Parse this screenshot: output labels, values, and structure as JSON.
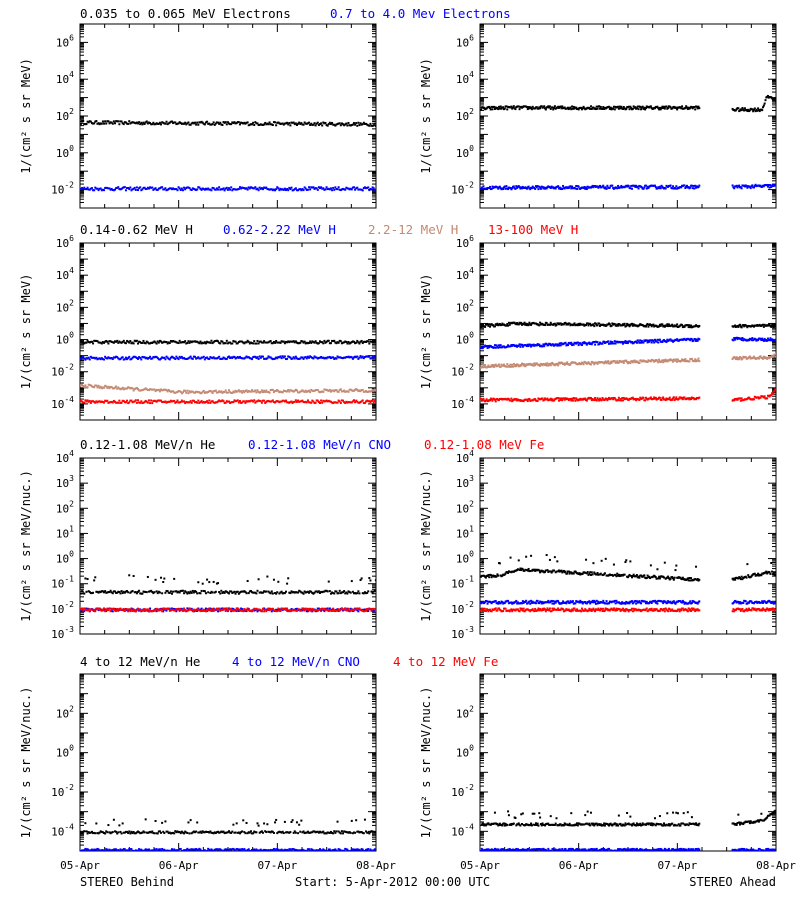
{
  "colors": {
    "black": "#000000",
    "blue": "#0000ff",
    "tan": "#c48a73",
    "red": "#ff0000"
  },
  "footer": {
    "left": "STEREO Behind",
    "center": "Start:  5-Apr-2012 00:00 UTC",
    "right": "STEREO Ahead",
    "x_ticks": [
      "05-Apr",
      "06-Apr",
      "07-Apr",
      "08-Apr"
    ]
  },
  "chart_data": [
    {
      "row": 1,
      "type": "scatter",
      "legend": [
        {
          "label": "0.035 to 0.065 MeV Electrons",
          "color": "#000000"
        },
        {
          "label": "0.7 to 4.0 Mev Electrons",
          "color": "#0000ff"
        }
      ],
      "ylabel": "1/(cm² s sr MeV)",
      "y_scale": "log",
      "ylim_log10": [
        -3,
        7
      ],
      "y_ticks": [
        {
          "exp": "-2",
          "label": "10⁻²"
        },
        {
          "exp": "0",
          "label": "10⁰"
        },
        {
          "exp": "2",
          "label": "10²"
        },
        {
          "exp": "4",
          "label": "10⁴"
        },
        {
          "exp": "6",
          "label": "10⁶"
        }
      ],
      "xlim_days": [
        0,
        3
      ],
      "panels": [
        {
          "title": "STEREO Behind",
          "series": [
            {
              "legend": 0,
              "segments": [
                {
                  "x": [
                    0,
                    3
                  ],
                  "y_log10": [
                    1.7,
                    1.6
                  ]
                }
              ]
            },
            {
              "legend": 1,
              "segments": [
                {
                  "x": [
                    0,
                    3
                  ],
                  "y_log10": [
                    -1.9,
                    -1.9
                  ]
                }
              ]
            }
          ]
        },
        {
          "title": "STEREO Ahead",
          "series": [
            {
              "legend": 0,
              "segments": [
                {
                  "x": [
                    0,
                    0.3,
                    2.95
                  ],
                  "y_log10": [
                    2.45,
                    2.5,
                    2.5
                  ]
                },
                {
                  "x": [
                    3.4,
                    3.8,
                    3.85,
                    3.9,
                    4.0
                  ],
                  "y_log10": [
                    2.4,
                    2.4,
                    3.0,
                    3.1,
                    2.9
                  ]
                }
              ]
            },
            {
              "legend": 1,
              "segments": [
                {
                  "x": [
                    0,
                    2.95
                  ],
                  "y_log10": [
                    -1.85,
                    -1.8
                  ]
                },
                {
                  "x": [
                    3.4,
                    4.0
                  ],
                  "y_log10": [
                    -1.8,
                    -1.75
                  ]
                }
              ]
            }
          ]
        }
      ]
    },
    {
      "row": 2,
      "type": "scatter",
      "legend": [
        {
          "label": "0.14-0.62 MeV H",
          "color": "#000000"
        },
        {
          "label": "0.62-2.22 MeV H",
          "color": "#0000ff"
        },
        {
          "label": "2.2-12 MeV H",
          "color": "#c48a73"
        },
        {
          "label": "13-100 MeV H",
          "color": "#ff0000"
        }
      ],
      "ylabel": "1/(cm² s sr MeV)",
      "y_scale": "log",
      "ylim_log10": [
        -5,
        6
      ],
      "y_ticks": [
        {
          "exp": "-4",
          "label": "10⁻⁴"
        },
        {
          "exp": "-2",
          "label": "10⁻²"
        },
        {
          "exp": "0",
          "label": "10⁰"
        },
        {
          "exp": "2",
          "label": "10²"
        },
        {
          "exp": "4",
          "label": "10⁴"
        },
        {
          "exp": "6",
          "label": "10⁶"
        }
      ],
      "xlim_days": [
        0,
        3
      ],
      "panels": [
        {
          "title": "STEREO Behind",
          "series": [
            {
              "legend": 0,
              "segments": [
                {
                  "x": [
                    0,
                    3
                  ],
                  "y_log10": [
                    -0.1,
                    -0.1
                  ]
                }
              ]
            },
            {
              "legend": 1,
              "segments": [
                {
                  "x": [
                    0,
                    3
                  ],
                  "y_log10": [
                    -1.1,
                    -1.05
                  ]
                }
              ]
            },
            {
              "legend": 2,
              "segments": [
                {
                  "x": [
                    0,
                    1,
                    3
                  ],
                  "y_log10": [
                    -2.8,
                    -3.2,
                    -3.1
                  ]
                }
              ]
            },
            {
              "legend": 3,
              "segments": [
                {
                  "x": [
                    0,
                    3
                  ],
                  "y_log10": [
                    -3.8,
                    -3.8
                  ]
                }
              ]
            }
          ]
        },
        {
          "title": "STEREO Ahead",
          "series": [
            {
              "legend": 0,
              "segments": [
                {
                  "x": [
                    0,
                    0.5,
                    2.95
                  ],
                  "y_log10": [
                    0.9,
                    1.05,
                    0.9
                  ]
                },
                {
                  "x": [
                    3.4,
                    4.0
                  ],
                  "y_log10": [
                    0.9,
                    0.9
                  ]
                }
              ]
            },
            {
              "legend": 1,
              "segments": [
                {
                  "x": [
                    0,
                    2.95
                  ],
                  "y_log10": [
                    -0.4,
                    0.05
                  ]
                },
                {
                  "x": [
                    3.4,
                    4.0
                  ],
                  "y_log10": [
                    0.1,
                    0.05
                  ]
                }
              ]
            },
            {
              "legend": 2,
              "segments": [
                {
                  "x": [
                    0,
                    2.95
                  ],
                  "y_log10": [
                    -1.6,
                    -1.2
                  ]
                },
                {
                  "x": [
                    3.4,
                    3.9,
                    4.0
                  ],
                  "y_log10": [
                    -1.1,
                    -1.05,
                    -0.9
                  ]
                }
              ]
            },
            {
              "legend": 3,
              "segments": [
                {
                  "x": [
                    0,
                    2.95
                  ],
                  "y_log10": [
                    -3.7,
                    -3.6
                  ]
                },
                {
                  "x": [
                    3.4,
                    3.9,
                    4.0
                  ],
                  "y_log10": [
                    -3.7,
                    -3.5,
                    -3.0
                  ]
                }
              ]
            }
          ]
        }
      ]
    },
    {
      "row": 3,
      "type": "scatter",
      "legend": [
        {
          "label": "0.12-1.08 MeV/n He",
          "color": "#000000"
        },
        {
          "label": "0.12-1.08 MeV/n CNO",
          "color": "#0000ff"
        },
        {
          "label": "0.12-1.08 MeV Fe",
          "color": "#ff0000"
        }
      ],
      "ylabel": "1/(cm² s sr MeV/nuc.)",
      "y_scale": "log",
      "ylim_log10": [
        -3,
        4
      ],
      "y_ticks": [
        {
          "exp": "-3",
          "label": "10⁻³"
        },
        {
          "exp": "-2",
          "label": "10⁻²"
        },
        {
          "exp": "-1",
          "label": "10⁻¹"
        },
        {
          "exp": "0",
          "label": "10⁰"
        },
        {
          "exp": "1",
          "label": "10¹"
        },
        {
          "exp": "2",
          "label": "10²"
        },
        {
          "exp": "3",
          "label": "10³"
        },
        {
          "exp": "4",
          "label": "10⁴"
        }
      ],
      "xlim_days": [
        0,
        3
      ],
      "panels": [
        {
          "title": "STEREO Behind",
          "series": [
            {
              "legend": 0,
              "segments": [
                {
                  "x": [
                    0,
                    3
                  ],
                  "y_log10": [
                    -1.3,
                    -1.3
                  ]
                }
              ]
            },
            {
              "legend": 1,
              "segments": [
                {
                  "x": [
                    0,
                    3
                  ],
                  "y_log10": [
                    -2.0,
                    -2.0
                  ]
                }
              ]
            },
            {
              "legend": 2,
              "segments": [
                {
                  "x": [
                    0,
                    3
                  ],
                  "y_log10": [
                    -2.0,
                    -2.0
                  ]
                }
              ]
            }
          ]
        },
        {
          "title": "STEREO Ahead",
          "series": [
            {
              "legend": 0,
              "segments": [
                {
                  "x": [
                    0,
                    0.3,
                    0.5,
                    2.95
                  ],
                  "y_log10": [
                    -0.7,
                    -0.6,
                    -0.4,
                    -0.8
                  ]
                },
                {
                  "x": [
                    3.4,
                    3.9,
                    4.0
                  ],
                  "y_log10": [
                    -0.8,
                    -0.5,
                    -0.6
                  ]
                }
              ]
            },
            {
              "legend": 1,
              "segments": [
                {
                  "x": [
                    0,
                    2.95
                  ],
                  "y_log10": [
                    -1.7,
                    -1.7
                  ]
                },
                {
                  "x": [
                    3.4,
                    4.0
                  ],
                  "y_log10": [
                    -1.7,
                    -1.7
                  ]
                }
              ]
            },
            {
              "legend": 2,
              "segments": [
                {
                  "x": [
                    0,
                    2.95
                  ],
                  "y_log10": [
                    -2.0,
                    -2.0
                  ]
                },
                {
                  "x": [
                    3.4,
                    4.0
                  ],
                  "y_log10": [
                    -2.0,
                    -2.0
                  ]
                }
              ]
            }
          ]
        }
      ]
    },
    {
      "row": 4,
      "type": "scatter",
      "legend": [
        {
          "label": "4 to 12 MeV/n He",
          "color": "#000000"
        },
        {
          "label": "4 to 12 MeV/n CNO",
          "color": "#0000ff"
        },
        {
          "label": "4 to 12 MeV Fe",
          "color": "#ff0000"
        }
      ],
      "ylabel": "1/(cm² s sr MeV/nuc.)",
      "y_scale": "log",
      "ylim_log10": [
        -5,
        4
      ],
      "y_ticks": [
        {
          "exp": "-4",
          "label": "10⁻⁴"
        },
        {
          "exp": "-2",
          "label": "10⁻²"
        },
        {
          "exp": "0",
          "label": "10⁰"
        },
        {
          "exp": "2",
          "label": "10²"
        }
      ],
      "xlim_days": [
        0,
        3
      ],
      "panels": [
        {
          "title": "STEREO Behind",
          "series": [
            {
              "legend": 0,
              "segments": [
                {
                  "x": [
                    0,
                    3
                  ],
                  "y_log10": [
                    -4.0,
                    -4.0
                  ]
                }
              ]
            },
            {
              "legend": 1,
              "segments": [
                {
                  "x": [
                    0,
                    3
                  ],
                  "y_log10": [
                    -4.9,
                    -4.9
                  ]
                }
              ]
            }
          ]
        },
        {
          "title": "STEREO Ahead",
          "series": [
            {
              "legend": 0,
              "segments": [
                {
                  "x": [
                    0,
                    2.95
                  ],
                  "y_log10": [
                    -3.6,
                    -3.6
                  ]
                },
                {
                  "x": [
                    3.4,
                    3.8,
                    4.0
                  ],
                  "y_log10": [
                    -3.6,
                    -3.4,
                    -2.9
                  ]
                }
              ]
            },
            {
              "legend": 1,
              "segments": [
                {
                  "x": [
                    0,
                    2.95
                  ],
                  "y_log10": [
                    -4.9,
                    -4.9
                  ]
                },
                {
                  "x": [
                    3.4,
                    4.0
                  ],
                  "y_log10": [
                    -4.9,
                    -4.9
                  ]
                }
              ]
            }
          ]
        }
      ]
    }
  ]
}
